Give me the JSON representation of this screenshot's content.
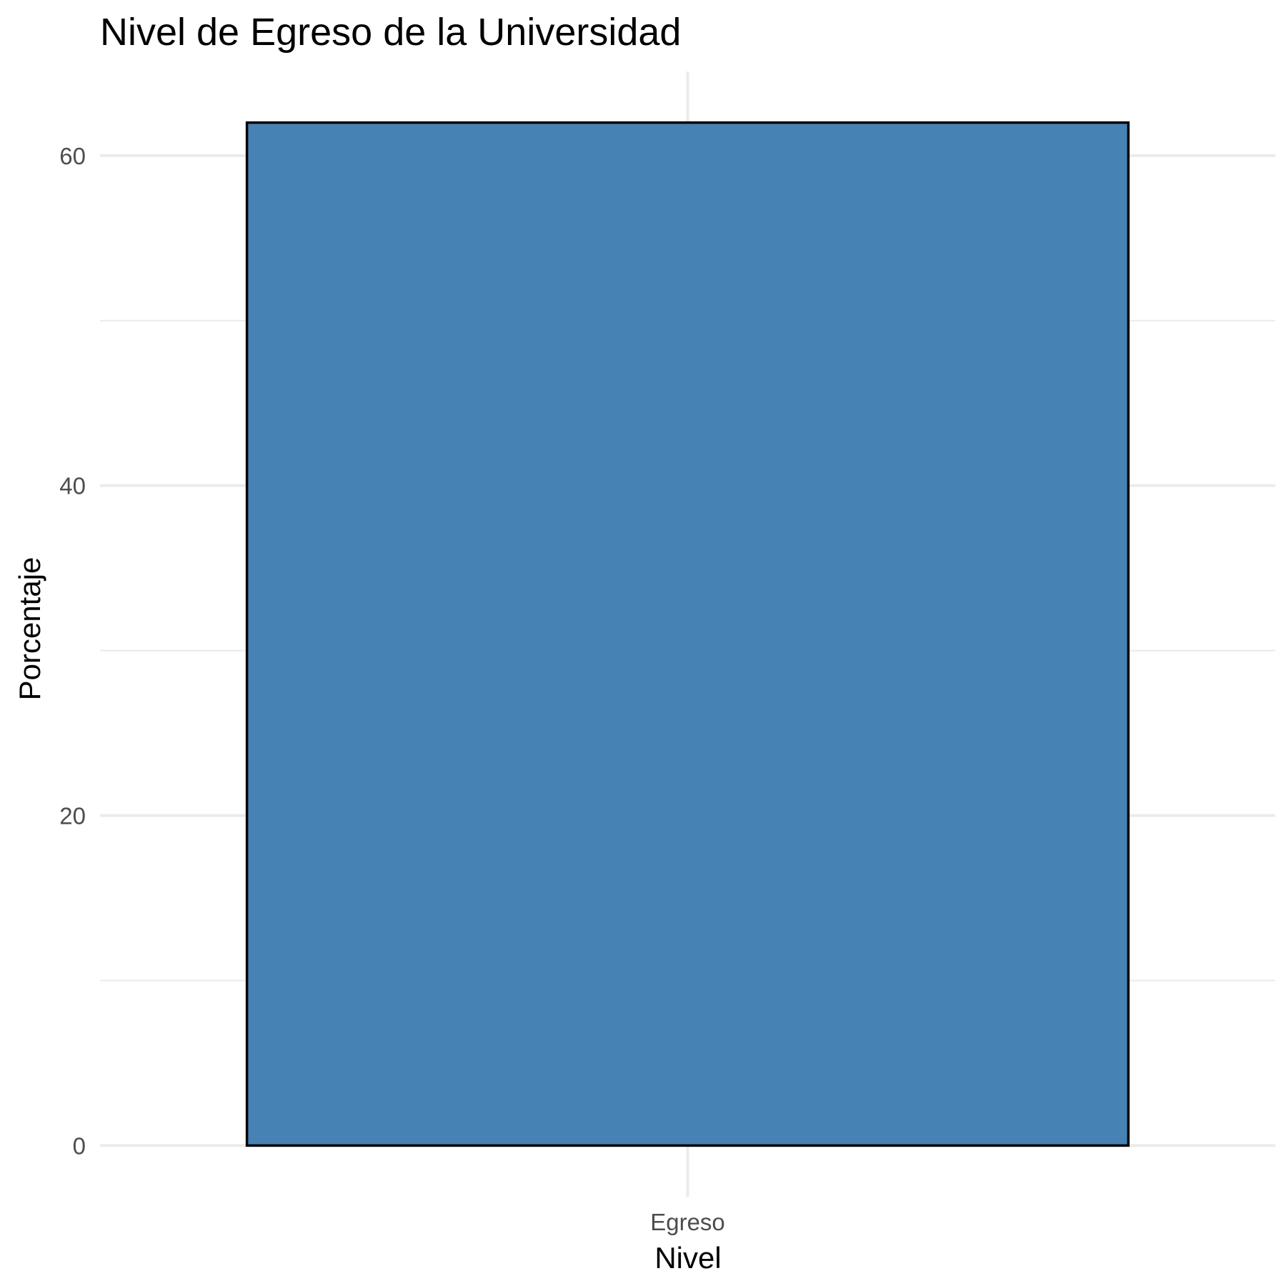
{
  "chart_data": {
    "type": "bar",
    "title": "Nivel de Egreso de la Universidad",
    "xlabel": "Nivel",
    "ylabel": "Porcentaje",
    "categories": [
      "Egreso"
    ],
    "values": [
      62
    ],
    "y_ticks": [
      0,
      20,
      40,
      60
    ],
    "y_minor_ticks": [
      10,
      30,
      50
    ],
    "ylim": [
      -3.1,
      65.1
    ],
    "grid": true,
    "legend": "none",
    "bar_color": "#4682b4",
    "bar_outline_color": "#000000"
  }
}
